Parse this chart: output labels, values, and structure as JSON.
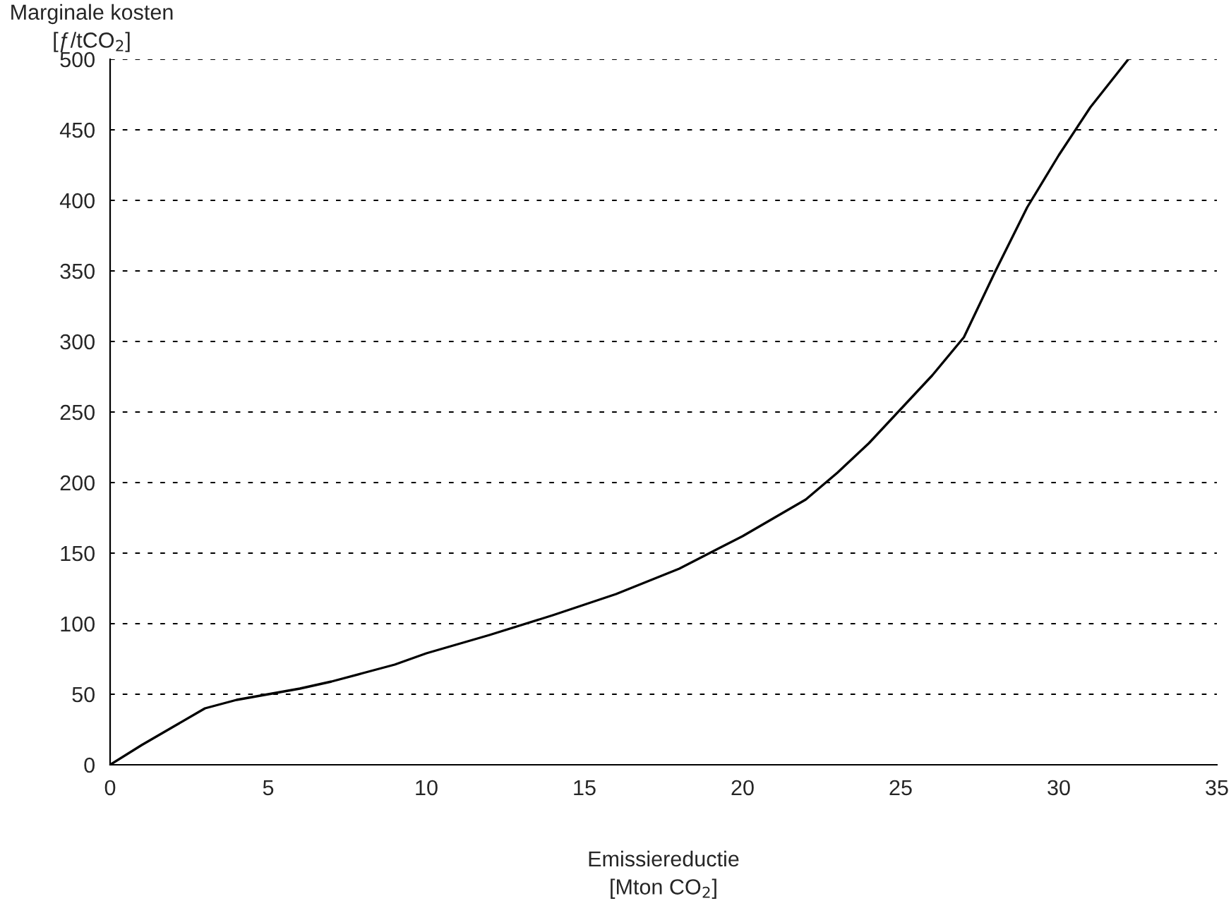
{
  "chart_data": {
    "type": "line",
    "ylabel": "Marginale kosten\n[ƒ/tCO$_{2}$]",
    "xlabel": "Emissiereductie\n[Mton CO$_{2}$]",
    "xlim": [
      0,
      35
    ],
    "xticks": [
      0,
      5,
      10,
      15,
      20,
      25,
      30,
      35
    ],
    "ylim": [
      0,
      500
    ],
    "yticks": [
      0,
      50,
      100,
      150,
      200,
      250,
      300,
      350,
      400,
      450,
      500
    ],
    "grid": "y",
    "marker": "none",
    "line_style": "solid",
    "series": [
      {
        "color": "#000000",
        "x": [
          0,
          1,
          2,
          3,
          4,
          5,
          6,
          7,
          8,
          9,
          10,
          12,
          14,
          16,
          18,
          20,
          21,
          22,
          23,
          24,
          25,
          26,
          27,
          28,
          29,
          30,
          31,
          32.2
        ],
        "values": [
          0,
          14,
          27,
          40,
          46,
          50,
          54,
          59,
          65,
          71,
          79,
          92,
          106,
          121,
          139,
          162,
          175,
          188,
          207,
          228,
          252,
          276,
          303,
          350,
          395,
          432,
          466,
          500
        ]
      }
    ]
  }
}
